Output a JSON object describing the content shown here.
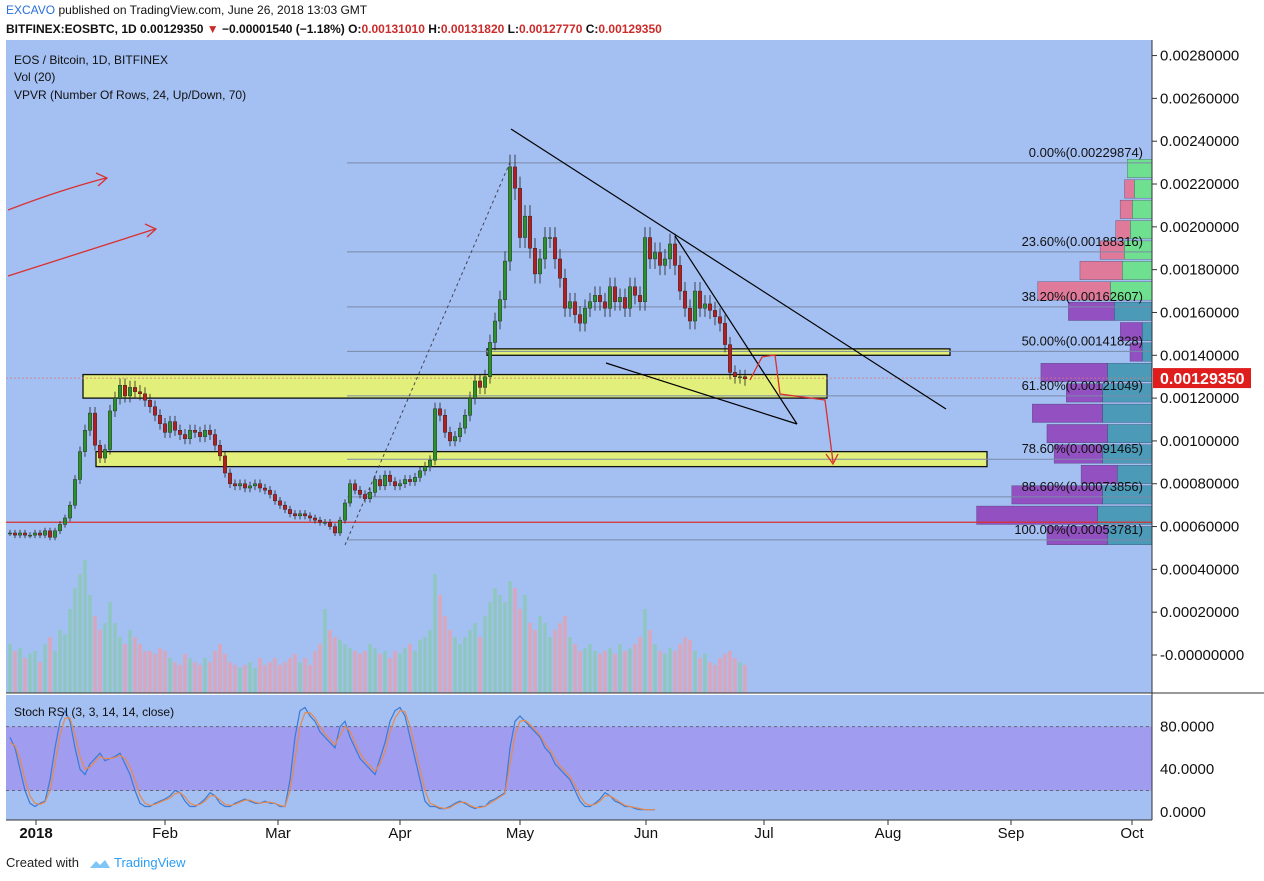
{
  "header": {
    "author": "EXCAVO",
    "published": "published on TradingView.com, June 26, 2018 13:03 GMT",
    "symbol": "BITFINEX:EOSBTC, 1D",
    "last": "0.00129350",
    "change": "−0.00001540 (−1.18%)",
    "o_label": "O:",
    "o": "0.00131010",
    "h_label": "H:",
    "h": "0.00131820",
    "l_label": "L:",
    "l": "0.00127770",
    "c_label": "C:",
    "c": "0.00129350"
  },
  "legend": {
    "title": "EOS / Bitcoin, 1D, BITFINEX",
    "vol": "Vol (20)",
    "vpvr": "VPVR (Number Of Rows, 24, Up/Down, 70)",
    "stoch": "Stoch RSI (3, 3, 14, 14, close)"
  },
  "footer": {
    "created": "Created with",
    "brand": "TradingView"
  },
  "colors": {
    "bg": "#a4bff2",
    "up": "#2f8f2f",
    "down": "#b02020",
    "fib_band": "#e2ef7a",
    "vol_up": "#8fc7c0",
    "vol_down": "#d8a7bd",
    "stoch_band": "#a09cf0",
    "stoch_k": "#3a7bd5",
    "stoch_d": "#e8894d",
    "price_tag": "#e01d1d",
    "red_line": "#d93030"
  },
  "chart_data": [
    {
      "type": "candlestick",
      "title": "EOS / Bitcoin, 1D, BITFINEX",
      "x_ticks": [
        "2018",
        "Feb",
        "Mar",
        "Apr",
        "May",
        "Jun",
        "Jul",
        "Aug",
        "Sep",
        "Oct"
      ],
      "y_ticks": [
        "0.00280000",
        "0.00260000",
        "0.00240000",
        "0.00220000",
        "0.00200000",
        "0.00180000",
        "0.00160000",
        "0.00140000",
        "0.00120000",
        "0.00100000",
        "0.00080000",
        "0.00060000",
        "0.00040000",
        "0.00020000",
        "-0.00000000"
      ],
      "ylim": [
        -7e-05,
        0.00284
      ],
      "last_price": "0.00129350",
      "last_value": 0.0012935,
      "horizontal_line": 0.00062,
      "closes": [
        0.00057,
        0.00056,
        0.00057,
        0.00056,
        0.00056,
        0.00057,
        0.00056,
        0.00058,
        0.00055,
        0.00058,
        0.00061,
        0.00064,
        0.0007,
        0.00082,
        0.00095,
        0.00105,
        0.00113,
        0.00098,
        0.00092,
        0.00096,
        0.00114,
        0.0012,
        0.00126,
        0.00121,
        0.00125,
        0.00123,
        0.00122,
        0.00119,
        0.00116,
        0.00112,
        0.00108,
        0.00104,
        0.00109,
        0.00105,
        0.00103,
        0.00101,
        0.00105,
        0.00104,
        0.00102,
        0.00105,
        0.00103,
        0.00098,
        0.00093,
        0.00085,
        0.0008,
        0.00079,
        0.0008,
        0.00078,
        0.00079,
        0.0008,
        0.00078,
        0.00077,
        0.00075,
        0.00072,
        0.0007,
        0.00068,
        0.00066,
        0.00065,
        0.00066,
        0.00065,
        0.00064,
        0.00063,
        0.00062,
        0.00062,
        0.0006,
        0.00057,
        0.00063,
        0.00071,
        0.0008,
        0.00077,
        0.00075,
        0.00073,
        0.00076,
        0.00082,
        0.00079,
        0.00084,
        0.00081,
        0.00079,
        0.0008,
        0.00082,
        0.00081,
        0.00083,
        0.00086,
        0.00088,
        0.00091,
        0.00115,
        0.00112,
        0.00104,
        0.001,
        0.00102,
        0.00106,
        0.00112,
        0.0012,
        0.00128,
        0.00125,
        0.0013,
        0.00146,
        0.00156,
        0.00166,
        0.00184,
        0.00228,
        0.00218,
        0.00195,
        0.00205,
        0.0019,
        0.00178,
        0.00185,
        0.00195,
        0.00195,
        0.00185,
        0.00176,
        0.00162,
        0.00165,
        0.00159,
        0.00155,
        0.00162,
        0.00165,
        0.00168,
        0.00165,
        0.00162,
        0.00172,
        0.00165,
        0.00167,
        0.00162,
        0.00172,
        0.00168,
        0.00165,
        0.00195,
        0.00185,
        0.00188,
        0.00182,
        0.00185,
        0.00192,
        0.00182,
        0.0017,
        0.00162,
        0.00156,
        0.0017,
        0.00162,
        0.00164,
        0.00161,
        0.00158,
        0.00155,
        0.00145,
        0.00132,
        0.0013,
        0.0013,
        0.00129
      ],
      "fib_levels": [
        {
          "label": "0.00%(0.00229874)",
          "value": 0.00229874
        },
        {
          "label": "23.60%(0.00188316)",
          "value": 0.00188316
        },
        {
          "label": "38.20%(0.00162607)",
          "value": 0.00162607
        },
        {
          "label": "50.00%(0.00141828)",
          "value": 0.00141828
        },
        {
          "label": "61.80%(0.00121049)",
          "value": 0.00121049
        },
        {
          "label": "78.60%(0.00091465)",
          "value": 0.00091465
        },
        {
          "label": "88.60%(0.00073856)",
          "value": 0.00073856
        },
        {
          "label": "100.00%(0.00053781)",
          "value": 0.00053781
        }
      ],
      "zones": [
        [
          0.0012,
          0.00131
        ],
        [
          0.00088,
          0.00095
        ],
        [
          0.0014,
          0.00143
        ]
      ],
      "vpvr_rows": [
        {
          "up": 0.25,
          "down": 0.0
        },
        {
          "up": 0.18,
          "down": 0.08
        },
        {
          "up": 0.2,
          "down": 0.1
        },
        {
          "up": 0.22,
          "down": 0.12
        },
        {
          "up": 0.28,
          "down": 0.2
        },
        {
          "up": 0.3,
          "down": 0.35
        },
        {
          "up": 0.42,
          "down": 0.6
        },
        {
          "up": 0.38,
          "down": 0.38
        },
        {
          "up": 0.1,
          "down": 0.18
        },
        {
          "up": 0.1,
          "down": 0.1
        },
        {
          "up": 0.45,
          "down": 0.55
        },
        {
          "up": 0.5,
          "down": 0.3
        },
        {
          "up": 0.5,
          "down": 0.58
        },
        {
          "up": 0.45,
          "down": 0.5
        },
        {
          "up": 0.5,
          "down": 0.4
        },
        {
          "up": 0.35,
          "down": 0.3
        },
        {
          "up": 0.5,
          "down": 0.75
        },
        {
          "up": 0.55,
          "down": 1.0
        },
        {
          "up": 0.45,
          "down": 0.5
        }
      ],
      "volume": [
        0.35,
        0.3,
        0.32,
        0.25,
        0.28,
        0.3,
        0.22,
        0.35,
        0.4,
        0.3,
        0.45,
        0.42,
        0.6,
        0.75,
        0.85,
        0.95,
        0.7,
        0.55,
        0.45,
        0.5,
        0.65,
        0.5,
        0.4,
        0.35,
        0.45,
        0.4,
        0.35,
        0.3,
        0.3,
        0.28,
        0.32,
        0.3,
        0.25,
        0.22,
        0.2,
        0.28,
        0.25,
        0.22,
        0.2,
        0.25,
        0.22,
        0.3,
        0.35,
        0.28,
        0.22,
        0.2,
        0.18,
        0.2,
        0.22,
        0.18,
        0.25,
        0.2,
        0.22,
        0.25,
        0.2,
        0.22,
        0.25,
        0.28,
        0.22,
        0.25,
        0.2,
        0.3,
        0.35,
        0.6,
        0.45,
        0.4,
        0.38,
        0.35,
        0.32,
        0.3,
        0.28,
        0.3,
        0.35,
        0.32,
        0.28,
        0.3,
        0.25,
        0.3,
        0.28,
        0.32,
        0.35,
        0.3,
        0.38,
        0.4,
        0.45,
        0.85,
        0.7,
        0.55,
        0.45,
        0.4,
        0.35,
        0.4,
        0.45,
        0.5,
        0.4,
        0.55,
        0.65,
        0.75,
        0.7,
        0.65,
        0.8,
        0.75,
        0.6,
        0.7,
        0.5,
        0.45,
        0.55,
        0.5,
        0.4,
        0.45,
        0.5,
        0.55,
        0.4,
        0.35,
        0.3,
        0.32,
        0.35,
        0.3,
        0.28,
        0.3,
        0.32,
        0.28,
        0.35,
        0.3,
        0.32,
        0.35,
        0.4,
        0.6,
        0.45,
        0.35,
        0.3,
        0.28,
        0.32,
        0.3,
        0.35,
        0.4,
        0.38,
        0.3,
        0.25,
        0.28,
        0.22,
        0.2,
        0.25,
        0.28,
        0.3,
        0.25,
        0.22,
        0.2
      ]
    },
    {
      "type": "line",
      "title": "Stoch RSI (3, 3, 14, 14, close)",
      "y_ticks": [
        "80.0000",
        "40.0000",
        "0.0000"
      ],
      "ylim": [
        -3,
        105
      ],
      "band": [
        20,
        80
      ],
      "series": [
        {
          "values": [
            70,
            60,
            40,
            20,
            8,
            5,
            8,
            10,
            30,
            60,
            85,
            95,
            85,
            60,
            40,
            35,
            45,
            50,
            55,
            48,
            50,
            52,
            55,
            45,
            35,
            20,
            8,
            5,
            5,
            8,
            10,
            12,
            15,
            20,
            18,
            10,
            5,
            5,
            8,
            12,
            18,
            15,
            8,
            5,
            5,
            8,
            10,
            12,
            10,
            8,
            8,
            10,
            8,
            8,
            5,
            5,
            30,
            70,
            95,
            98,
            90,
            85,
            75,
            70,
            65,
            60,
            80,
            85,
            70,
            60,
            50,
            45,
            40,
            35,
            50,
            65,
            85,
            95,
            98,
            90,
            70,
            50,
            30,
            10,
            5,
            5,
            3,
            3,
            5,
            8,
            10,
            8,
            5,
            3,
            5,
            5,
            10,
            12,
            15,
            18,
            60,
            85,
            90,
            85,
            80,
            75,
            70,
            60,
            55,
            45,
            40,
            35,
            30,
            20,
            10,
            5,
            5,
            8,
            12,
            18,
            15,
            10,
            8,
            5,
            5,
            3,
            2,
            2,
            2,
            2
          ]
        },
        {
          "values": [
            65,
            62,
            50,
            30,
            15,
            8,
            7,
            9,
            20,
            45,
            72,
            88,
            88,
            72,
            52,
            40,
            42,
            47,
            52,
            50,
            50,
            51,
            53,
            50,
            42,
            30,
            15,
            8,
            6,
            7,
            9,
            11,
            13,
            17,
            18,
            14,
            8,
            6,
            7,
            10,
            15,
            15,
            11,
            7,
            6,
            7,
            9,
            11,
            11,
            9,
            8,
            9,
            9,
            8,
            6,
            5,
            20,
            50,
            80,
            93,
            93,
            88,
            80,
            73,
            68,
            63,
            72,
            80,
            76,
            65,
            55,
            48,
            43,
            38,
            45,
            57,
            75,
            88,
            95,
            94,
            80,
            60,
            40,
            20,
            8,
            6,
            4,
            3,
            4,
            7,
            9,
            9,
            6,
            4,
            4,
            5,
            8,
            11,
            14,
            17,
            45,
            72,
            85,
            86,
            82,
            77,
            72,
            64,
            58,
            50,
            43,
            38,
            33,
            25,
            15,
            8,
            6,
            7,
            10,
            15,
            15,
            12,
            9,
            6,
            5,
            4,
            3,
            2,
            2,
            2
          ]
        }
      ]
    }
  ]
}
